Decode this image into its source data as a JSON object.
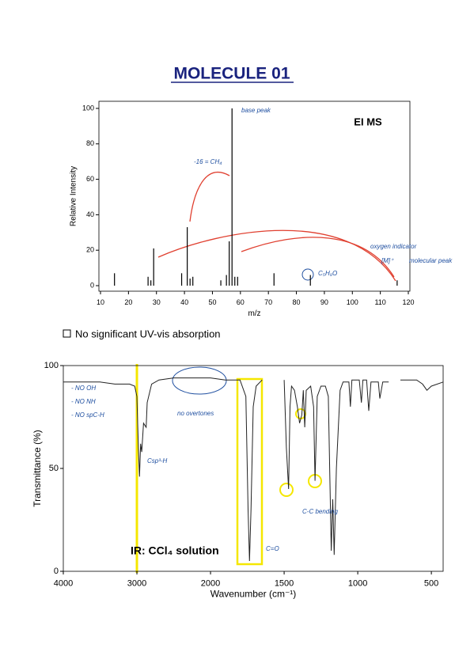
{
  "header": {
    "title": "MOLECULE 01"
  },
  "note": "No significant UV-vis absorption",
  "chart_data": [
    {
      "type": "bar",
      "title": "EI MS",
      "xlabel": "m/z",
      "ylabel": "Relative Intensity",
      "color": "#000000",
      "x": [
        15,
        27,
        28,
        29,
        39,
        41,
        42,
        43,
        53,
        55,
        56,
        57,
        58,
        59,
        72,
        85,
        116
      ],
      "values": [
        7,
        5,
        3,
        21,
        7,
        33,
        4,
        5,
        3,
        6,
        25,
        100,
        5,
        5,
        7,
        6,
        3
      ],
      "xlim": [
        10,
        120
      ],
      "xticks": [
        10,
        20,
        30,
        40,
        50,
        60,
        70,
        80,
        90,
        100,
        110,
        120
      ],
      "ylim": [
        0,
        100
      ],
      "yticks": [
        0,
        20,
        40,
        60,
        80,
        100
      ],
      "annotations": [
        "base peak",
        "C₅H₉O",
        "molecular peak",
        "[M]⁺",
        "oxygen indicator",
        "-16 = CH₄"
      ]
    },
    {
      "type": "line",
      "title": "IR: CCl₄ solution",
      "xlabel": "Wavenumber (cm⁻¹)",
      "ylabel": "Transmittance (%)",
      "color": "#222222",
      "x": [
        4000,
        3700,
        3500,
        3300,
        3100,
        3030,
        3000,
        2980,
        2965,
        2950,
        2935,
        2910,
        2875,
        2860,
        2800,
        2700,
        2500,
        2200,
        2000,
        1900,
        1800,
        1760,
        1745,
        1735,
        1725,
        1710,
        1690,
        1650,
        1600,
        1500,
        1485,
        1470,
        1460,
        1450,
        1430,
        1410,
        1395,
        1380,
        1370,
        1360,
        1350,
        1320,
        1300,
        1290,
        1275,
        1250,
        1220,
        1200,
        1180,
        1170,
        1160,
        1145,
        1120,
        1100,
        1060,
        1050,
        1040,
        990,
        975,
        965,
        940,
        925,
        910,
        860,
        850,
        830,
        790,
        760,
        710,
        600,
        560,
        530,
        500,
        420
      ],
      "values": [
        92,
        92,
        92,
        91,
        91,
        90,
        85,
        60,
        46,
        62,
        58,
        72,
        70,
        82,
        91,
        93,
        94,
        94,
        94,
        93,
        93,
        85,
        30,
        5,
        30,
        80,
        90,
        93,
        null,
        93,
        60,
        40,
        80,
        90,
        88,
        80,
        72,
        76,
        88,
        70,
        88,
        90,
        80,
        44,
        85,
        90,
        90,
        85,
        10,
        35,
        8,
        50,
        88,
        92,
        92,
        80,
        93,
        93,
        82,
        93,
        93,
        78,
        92,
        92,
        84,
        92,
        92,
        null,
        93,
        93,
        91,
        88,
        90,
        92
      ],
      "xlim": [
        4000,
        420
      ],
      "xticks": [
        4000,
        3000,
        2000,
        1500,
        1000,
        500
      ],
      "ylim": [
        0,
        100
      ],
      "yticks": [
        0,
        50,
        100
      ],
      "annotations": [
        "C=O",
        "Csp³-H",
        "no overtones",
        "- NO OH",
        "- NO NH",
        "- NO spC-H",
        "C-C bending"
      ]
    }
  ]
}
